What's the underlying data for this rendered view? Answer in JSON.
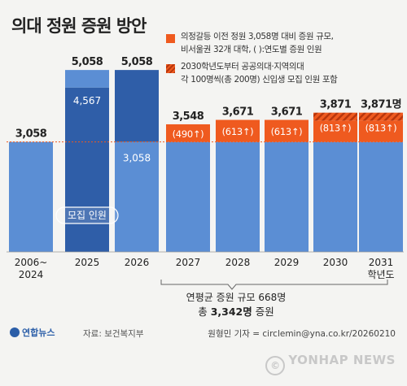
{
  "title": "의대 정원 증원 방안",
  "legend": [
    {
      "text_lines": [
        "의정갈등 이전 정원 3,058명 대비 증원 규모,",
        "비서울권 32개 대학, ( ):연도별 증원 인원"
      ],
      "swatch": "solid"
    },
    {
      "text_lines": [
        "2030학년도부터 공공의대·지역의대",
        "각 100명씩(총 200명) 신입생 모집 인원 포함"
      ],
      "swatch": "hatched"
    }
  ],
  "colors": {
    "bar_light": "#5b8ed4",
    "bar_dark": "#2f5ea8",
    "increase": "#ef5a1f",
    "baseline_dots": "#ef5a1f",
    "text": "#222222"
  },
  "chart_data": {
    "type": "bar",
    "categories": [
      "2006~\n2024",
      "2025",
      "2026",
      "2027",
      "2028",
      "2029",
      "2030",
      "2031\n학년도"
    ],
    "series": [
      {
        "values": [
          3058,
          4567,
          3058,
          3058,
          3058,
          3058,
          3058,
          3058
        ]
      },
      {
        "values": [
          0,
          491,
          2000,
          490,
          613,
          613,
          813,
          813
        ]
      }
    ],
    "totals": [
      "3,058",
      "5,058",
      "5,058",
      "3,548",
      "3,671",
      "3,671",
      "3,871",
      "3,871명"
    ],
    "inner_labels": [
      "",
      "4,567",
      "3,058",
      "",
      "",
      "",
      "",
      ""
    ],
    "increase_labels": [
      "",
      "",
      "",
      "(490↑)",
      "(613↑)",
      "(613↑)",
      "(813↑)",
      "(813↑)"
    ],
    "hatched": [
      false,
      false,
      false,
      false,
      false,
      false,
      true,
      true
    ],
    "dark_bars": [
      false,
      true,
      true,
      false,
      false,
      false,
      false,
      false
    ],
    "baseline": 3058,
    "recruit_label": "모집 인원",
    "ylim": [
      0,
      5200
    ]
  },
  "annotation": {
    "line1": "연평균 증원 규모 668명",
    "line2_prefix": "총 ",
    "line2_bold": "3,342명",
    "line2_suffix": " 증원"
  },
  "footer": {
    "logo": "연합뉴스",
    "source": "자료: 보건복지부",
    "credit": "원형민 기자 = circlemin@yna.co.kr/20260210",
    "watermark": "YONHAP NEWS"
  }
}
